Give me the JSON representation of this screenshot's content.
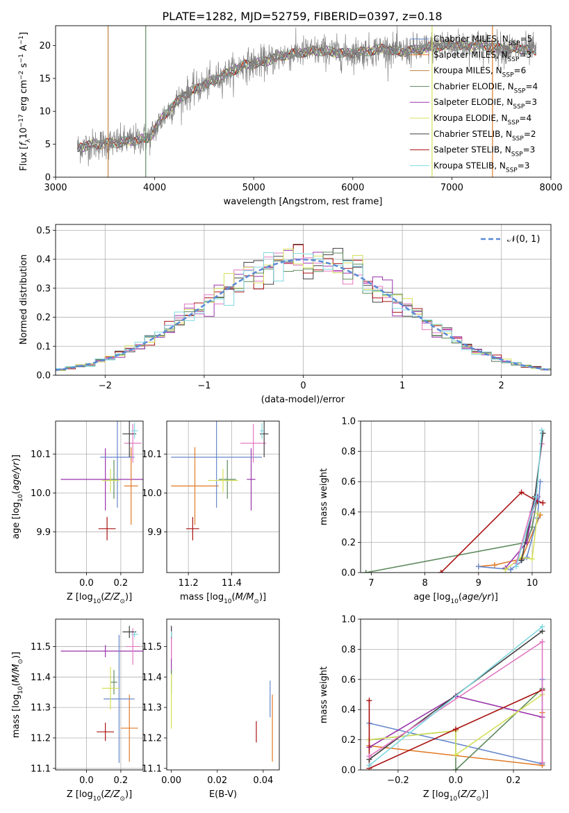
{
  "figure_title": "PLATE=1282, MJD=52759, FIBERID=0397, z=0.18",
  "chart_data": [
    {
      "id": "spectrum",
      "type": "line",
      "xlabel": "wavelength [Angstrom, rest frame]",
      "ylabel": "Flux [f_λ 10^-17 erg cm^-2 s^-1 A^-1]",
      "xlim": [
        3000,
        8000
      ],
      "ylim": [
        0,
        23
      ],
      "xticks": [
        3000,
        4000,
        5000,
        6000,
        7000,
        8000
      ],
      "yticks": [
        0,
        5,
        10,
        15,
        20
      ],
      "grid": false,
      "legend_placement": "right",
      "data_line_color": "#808080",
      "continuum": {
        "x": [
          3220,
          3400,
          3600,
          3800,
          3950,
          4100,
          4300,
          4500,
          4700,
          4900,
          5100,
          5300,
          5500,
          5700,
          5900,
          6100,
          6300,
          6500,
          6700,
          6900,
          7100,
          7300,
          7500,
          7700,
          7850
        ],
        "y": [
          4.5,
          5.0,
          5.2,
          5.6,
          6.0,
          9.5,
          12.5,
          14.0,
          15.5,
          17.0,
          17.5,
          18.5,
          19.0,
          19.2,
          18.8,
          19.0,
          19.5,
          19.0,
          19.5,
          20.0,
          20.0,
          20.0,
          19.5,
          19.5,
          19.2
        ]
      },
      "series": [
        {
          "name": "Chabrier MILES, N_SSP=5",
          "color": "#6688cc"
        },
        {
          "name": "Salpeter MILES, N_SSP=3",
          "color": "#e07a26"
        },
        {
          "name": "Kroupa MILES, N_SSP=6",
          "color": "#c08040"
        },
        {
          "name": "Chabrier ELODIE, N_SSP=4",
          "color": "#5e8a5e"
        },
        {
          "name": "Salpeter ELODIE, N_SSP=3",
          "color": "#9933aa"
        },
        {
          "name": "Kroupa ELODIE, N_SSP=4",
          "color": "#d4e05a"
        },
        {
          "name": "Chabrier STELIB, N_SSP=2",
          "color": "#404040"
        },
        {
          "name": "Salpeter STELIB, N_SSP=3",
          "color": "#aa1111"
        },
        {
          "name": "Kroupa STELIB, N_SSP=3",
          "color": "#80d8e0"
        }
      ]
    },
    {
      "id": "residuals",
      "type": "line",
      "xlabel": "(data-model)/error",
      "ylabel": "Normed distribution",
      "xlim": [
        -2.5,
        2.5
      ],
      "ylim": [
        0,
        0.52
      ],
      "xticks": [
        -2,
        -1,
        0,
        1,
        2
      ],
      "yticks": [
        0.0,
        0.1,
        0.2,
        0.3,
        0.4,
        0.5
      ],
      "grid": true,
      "legend_placement": "top-right",
      "legend_label": "𝒩(0, 1)",
      "bin_width": 0.1,
      "step_colors": [
        "#404040",
        "#aa1111",
        "#9933aa",
        "#e377c2",
        "#d4e05a",
        "#5e8a5e",
        "#80d8e0"
      ]
    },
    {
      "id": "age-vs-Z",
      "type": "scatter",
      "xlabel": "Z [log10(Z/Z⊙)]",
      "ylabel": "age [log10(age/yr)]",
      "xlim": [
        -0.18,
        0.33
      ],
      "ylim": [
        9.795,
        10.185
      ],
      "xticks": [
        0.0,
        0.2
      ],
      "yticks": [
        9.9,
        10.0,
        10.1
      ],
      "grid": true,
      "points": [
        {
          "x": 0.12,
          "y": 9.908,
          "xerr": 0.05,
          "yerr": 0.03,
          "color": "#aa1111"
        },
        {
          "x": 0.11,
          "y": 10.035,
          "xerr": 0.26,
          "yerr": 0.08,
          "color": "#9933aa"
        },
        {
          "x": 0.26,
          "y": 10.018,
          "xerr": 0.04,
          "yerr": 0.1,
          "color": "#e07a26"
        },
        {
          "x": 0.18,
          "y": 10.092,
          "xerr": 0.1,
          "yerr": 0.13,
          "color": "#6688cc"
        },
        {
          "x": 0.16,
          "y": 10.035,
          "xerr": 0.02,
          "yerr": 0.05,
          "color": "#5e8a5e"
        },
        {
          "x": 0.14,
          "y": 10.032,
          "xerr": 0.05,
          "yerr": 0.03,
          "color": "#d4e05a"
        },
        {
          "x": 0.27,
          "y": 10.128,
          "xerr": 0.05,
          "yerr": 0.05,
          "color": "#e377c2"
        },
        {
          "x": 0.25,
          "y": 10.152,
          "xerr": 0.04,
          "yerr": 0.06,
          "color": "#404040"
        },
        {
          "x": 0.28,
          "y": 10.16,
          "xerr": 0.02,
          "yerr": 0.02,
          "color": "#80d8e0"
        }
      ]
    },
    {
      "id": "age-vs-mass",
      "type": "scatter",
      "xlabel": "mass [log10(M/M⊙)]",
      "ylabel": "",
      "xlim": [
        11.1,
        11.62
      ],
      "ylim": [
        9.795,
        10.185
      ],
      "xticks": [
        11.2,
        11.4
      ],
      "yticks": [
        9.9,
        10.0,
        10.1
      ],
      "grid": true,
      "points": [
        {
          "x": 11.22,
          "y": 9.908,
          "xerr": 0.03,
          "yerr": 0.03,
          "color": "#aa1111"
        },
        {
          "x": 11.49,
          "y": 10.035,
          "xerr": 0.02,
          "yerr": 0.08,
          "color": "#9933aa"
        },
        {
          "x": 11.23,
          "y": 10.018,
          "xerr": 0.11,
          "yerr": 0.1,
          "color": "#e07a26"
        },
        {
          "x": 11.33,
          "y": 10.092,
          "xerr": 0.21,
          "yerr": 0.13,
          "color": "#6688cc"
        },
        {
          "x": 11.38,
          "y": 10.035,
          "xerr": 0.04,
          "yerr": 0.05,
          "color": "#5e8a5e"
        },
        {
          "x": 11.36,
          "y": 10.032,
          "xerr": 0.07,
          "yerr": 0.03,
          "color": "#d4e05a"
        },
        {
          "x": 11.5,
          "y": 10.128,
          "xerr": 0.06,
          "yerr": 0.05,
          "color": "#e377c2"
        },
        {
          "x": 11.55,
          "y": 10.152,
          "xerr": 0.02,
          "yerr": 0.06,
          "color": "#404040"
        },
        {
          "x": 11.54,
          "y": 10.16,
          "xerr": 0.01,
          "yerr": 0.02,
          "color": "#80d8e0"
        }
      ]
    },
    {
      "id": "weight-vs-age",
      "type": "line",
      "xlabel": "age [log10(age/yr)]",
      "ylabel": "mass weight",
      "xlim": [
        6.8,
        10.35
      ],
      "ylim": [
        0,
        1
      ],
      "xticks": [
        7,
        8,
        9,
        10
      ],
      "yticks": [
        0.0,
        0.2,
        0.4,
        0.6,
        0.8,
        1.0
      ],
      "grid": true,
      "series": [
        {
          "color": "#5e8a5e",
          "x": [
            6.9,
            9.9,
            10.0,
            10.1
          ],
          "y": [
            0.0,
            0.2,
            0.3,
            0.5
          ]
        },
        {
          "color": "#aa1111",
          "x": [
            8.3,
            9.8,
            10.1,
            10.2
          ],
          "y": [
            0.0,
            0.53,
            0.47,
            0.46
          ]
        },
        {
          "color": "#e07a26",
          "x": [
            9.0,
            9.3,
            9.8,
            10.15
          ],
          "y": [
            0.04,
            0.05,
            0.09,
            0.38
          ]
        },
        {
          "color": "#6688cc",
          "x": [
            9.0,
            9.6,
            9.9,
            10.1,
            10.15
          ],
          "y": [
            0.04,
            0.02,
            0.1,
            0.36,
            0.6
          ]
        },
        {
          "color": "#9933aa",
          "x": [
            9.5,
            9.9,
            10.0,
            10.1
          ],
          "y": [
            0.03,
            0.2,
            0.4,
            0.5
          ]
        },
        {
          "color": "#d4e05a",
          "x": [
            9.5,
            9.8,
            10.0,
            10.1
          ],
          "y": [
            0.02,
            0.1,
            0.09,
            0.39
          ]
        },
        {
          "color": "#e377c2",
          "x": [
            9.7,
            10.05,
            10.18
          ],
          "y": [
            0.06,
            0.5,
            0.85
          ]
        },
        {
          "color": "#404040",
          "x": [
            9.8,
            10.05,
            10.2
          ],
          "y": [
            0.08,
            0.5,
            0.92
          ]
        },
        {
          "color": "#80d8e0",
          "x": [
            9.7,
            10.08,
            10.18
          ],
          "y": [
            0.04,
            0.5,
            0.94
          ]
        }
      ]
    },
    {
      "id": "mass-vs-Z",
      "type": "scatter",
      "xlabel": "Z [log10(Z/Z⊙)]",
      "ylabel": "mass [log10(M/M⊙)]",
      "xlim": [
        -0.18,
        0.33
      ],
      "ylim": [
        11.095,
        11.59
      ],
      "xticks": [
        0.0,
        0.2
      ],
      "yticks": [
        11.1,
        11.2,
        11.3,
        11.4,
        11.5
      ],
      "grid": true,
      "points": [
        {
          "x": 0.11,
          "y": 11.22,
          "xerr": 0.05,
          "yerr": 0.03,
          "color": "#aa1111"
        },
        {
          "x": 0.11,
          "y": 11.485,
          "xerr": 0.26,
          "yerr": 0.02,
          "color": "#9933aa"
        },
        {
          "x": 0.25,
          "y": 11.232,
          "xerr": 0.05,
          "yerr": 0.11,
          "color": "#e07a26"
        },
        {
          "x": 0.19,
          "y": 11.328,
          "xerr": 0.09,
          "yerr": 0.21,
          "color": "#6688cc"
        },
        {
          "x": 0.16,
          "y": 11.383,
          "xerr": 0.02,
          "yerr": 0.04,
          "color": "#5e8a5e"
        },
        {
          "x": 0.14,
          "y": 11.363,
          "xerr": 0.05,
          "yerr": 0.07,
          "color": "#d4e05a"
        },
        {
          "x": 0.27,
          "y": 11.5,
          "xerr": 0.04,
          "yerr": 0.06,
          "color": "#e377c2"
        },
        {
          "x": 0.25,
          "y": 11.548,
          "xerr": 0.04,
          "yerr": 0.02,
          "color": "#404040"
        },
        {
          "x": 0.28,
          "y": 11.54,
          "xerr": 0.02,
          "yerr": 0.01,
          "color": "#80d8e0"
        }
      ]
    },
    {
      "id": "mass-vs-ebv",
      "type": "scatter",
      "xlabel": "E(B-V)",
      "ylabel": "",
      "xlim": [
        -0.002,
        0.047
      ],
      "ylim": [
        11.095,
        11.59
      ],
      "xticks": [
        0.0,
        0.02,
        0.04
      ],
      "yticks": [
        11.1,
        11.2,
        11.3,
        11.4,
        11.5
      ],
      "grid": false,
      "points": [
        {
          "x": 0.037,
          "y": 11.22,
          "yerr": 0.035,
          "color": "#aa1111"
        },
        {
          "x": 0.0,
          "y": 11.485,
          "yerr": 0.08,
          "color": "#9933aa"
        },
        {
          "x": 0.044,
          "y": 11.232,
          "yerr": 0.11,
          "color": "#e07a26"
        },
        {
          "x": 0.043,
          "y": 11.328,
          "yerr": 0.06,
          "color": "#6688cc"
        },
        {
          "x": 0.0,
          "y": 11.383,
          "yerr": 0.04,
          "color": "#5e8a5e"
        },
        {
          "x": 0.0,
          "y": 11.32,
          "yerr": 0.09,
          "color": "#d4e05a"
        },
        {
          "x": 0.0,
          "y": 11.5,
          "yerr": 0.04,
          "color": "#e377c2"
        },
        {
          "x": 0.0,
          "y": 11.548,
          "yerr": 0.02,
          "color": "#404040"
        },
        {
          "x": 0.0,
          "y": 11.54,
          "yerr": 0.01,
          "color": "#80d8e0"
        }
      ]
    },
    {
      "id": "weight-vs-Z",
      "type": "line",
      "xlabel": "Z [log10(Z/Z⊙)]",
      "ylabel": "mass weight",
      "xlim": [
        -0.33,
        0.33
      ],
      "ylim": [
        0,
        1
      ],
      "xticks": [
        -0.2,
        0.0,
        0.2
      ],
      "yticks": [
        0.0,
        0.2,
        0.4,
        0.6,
        0.8,
        1.0
      ],
      "grid": true,
      "series": [
        {
          "color": "#6688cc",
          "x": [
            -0.3,
            0.3,
            0.3
          ],
          "y": [
            0.31,
            0.04,
            0.6
          ]
        },
        {
          "color": "#e07a26",
          "x": [
            -0.3,
            0.3,
            0.3
          ],
          "y": [
            0.16,
            0.03,
            0.38
          ]
        },
        {
          "color": "#5e8a5e",
          "x": [
            -0.3,
            0.0,
            0.0,
            0.3
          ],
          "y": [
            0.2,
            0.26,
            0.0,
            0.54
          ]
        },
        {
          "color": "#9933aa",
          "x": [
            -0.3,
            0.0,
            0.3
          ],
          "y": [
            0.15,
            0.49,
            0.35
          ]
        },
        {
          "color": "#d4e05a",
          "x": [
            -0.3,
            0.0,
            0.0,
            0.3
          ],
          "y": [
            0.2,
            0.26,
            0.1,
            0.5
          ]
        },
        {
          "color": "#aa1111",
          "x": [
            -0.3,
            -0.3,
            0.0,
            0.3
          ],
          "y": [
            0.46,
            0.01,
            0.27,
            0.53
          ]
        },
        {
          "color": "#404040",
          "x": [
            -0.3,
            0.3
          ],
          "y": [
            0.07,
            0.92
          ]
        },
        {
          "color": "#e377c2",
          "x": [
            -0.3,
            0.3,
            0.3
          ],
          "y": [
            0.09,
            0.85,
            0.05
          ]
        },
        {
          "color": "#80d8e0",
          "x": [
            -0.3,
            0.3
          ],
          "y": [
            0.03,
            0.95
          ]
        }
      ]
    }
  ]
}
